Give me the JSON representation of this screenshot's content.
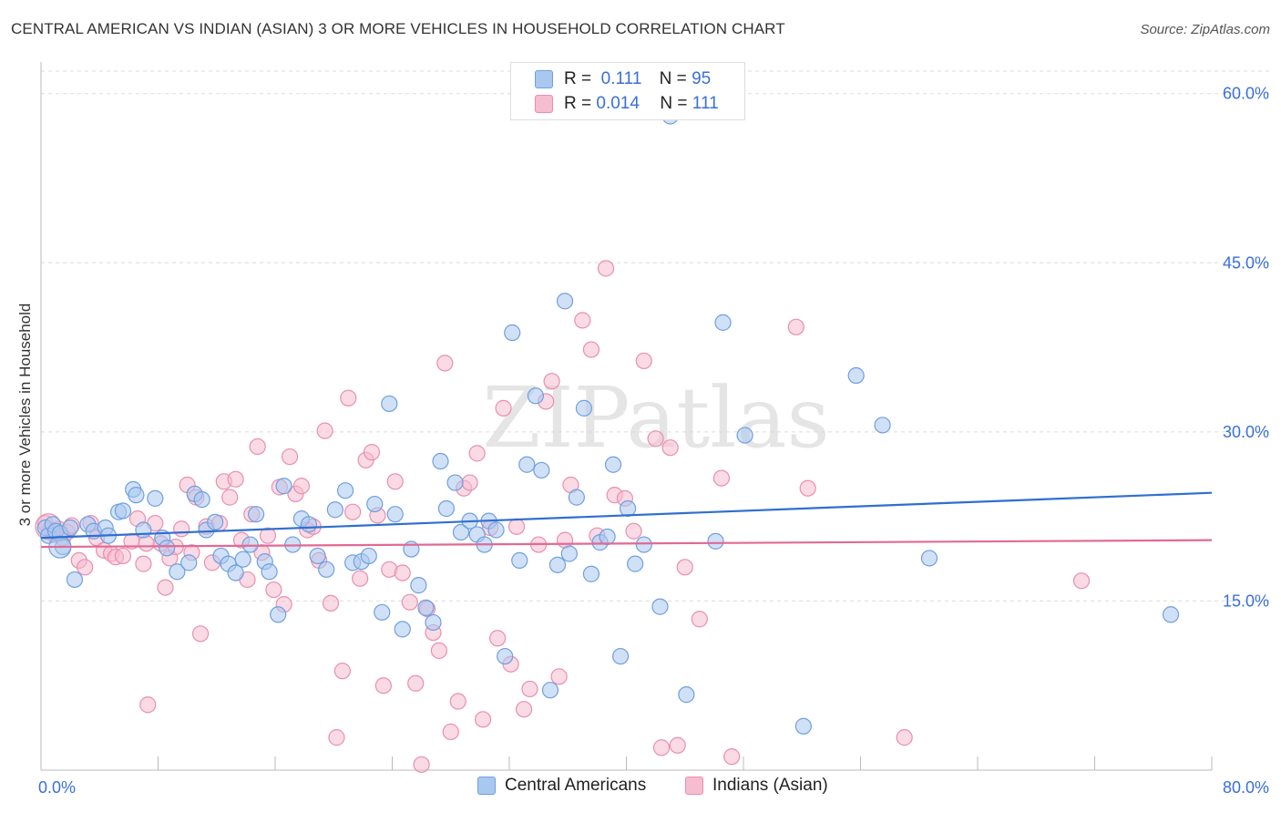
{
  "title": "CENTRAL AMERICAN VS INDIAN (ASIAN) 3 OR MORE VEHICLES IN HOUSEHOLD CORRELATION CHART",
  "source": "Source: ZipAtlas.com",
  "watermark": "ZIPatlas",
  "legend_top": {
    "r_label": "R =",
    "n_label": "N =",
    "rows": [
      {
        "r": "0.111",
        "n": "95"
      },
      {
        "r": "0.014",
        "n": "111"
      }
    ]
  },
  "colors": {
    "blue_fill": "#a9c8f0",
    "blue_stroke": "#6f9fe0",
    "blue_line": "#2f6fd0",
    "pink_fill": "#f6bccf",
    "pink_stroke": "#e98fae",
    "pink_line": "#e06a95",
    "axis_text": "#3a6fd8",
    "grid": "#dcdcdc"
  },
  "chart_data": {
    "type": "scatter",
    "title": "CENTRAL AMERICAN VS INDIAN (ASIAN) 3 OR MORE VEHICLES IN HOUSEHOLD CORRELATION CHART",
    "xlabel": "",
    "ylabel": "3 or more Vehicles in Household",
    "xlim": [
      0,
      80
    ],
    "ylim": [
      0,
      62
    ],
    "x_tick_labels": [
      "0.0%",
      "80.0%"
    ],
    "y_tick_labels": [
      "15.0%",
      "30.0%",
      "45.0%",
      "60.0%"
    ],
    "y_ticks": [
      15,
      30,
      45,
      60
    ],
    "grid": true,
    "legend": "top-center and bottom",
    "series": [
      {
        "name": "Central Americans",
        "color": "#a9c8f0",
        "r": "0.111",
        "n": "95",
        "trend": [
          [
            0,
            20.6
          ],
          [
            80,
            24.6
          ]
        ],
        "points": [
          [
            0.3,
            21.5
          ],
          [
            0.5,
            20.8
          ],
          [
            0.8,
            21.8
          ],
          [
            1.0,
            21.2
          ],
          [
            1.3,
            21.0
          ],
          [
            1.5,
            19.8
          ],
          [
            2.0,
            21.5
          ],
          [
            2.3,
            16.9
          ],
          [
            3.2,
            21.8
          ],
          [
            3.6,
            21.2
          ],
          [
            4.4,
            21.5
          ],
          [
            4.6,
            20.8
          ],
          [
            5.3,
            22.9
          ],
          [
            5.6,
            23.0
          ],
          [
            6.3,
            24.9
          ],
          [
            6.5,
            24.4
          ],
          [
            7.0,
            21.3
          ],
          [
            7.8,
            24.1
          ],
          [
            8.3,
            20.6
          ],
          [
            8.6,
            19.7
          ],
          [
            9.3,
            17.6
          ],
          [
            10.1,
            18.4
          ],
          [
            10.5,
            24.5
          ],
          [
            11.0,
            24.0
          ],
          [
            11.3,
            21.3
          ],
          [
            11.9,
            22.0
          ],
          [
            12.3,
            19.0
          ],
          [
            12.8,
            18.3
          ],
          [
            13.3,
            17.5
          ],
          [
            13.8,
            18.7
          ],
          [
            14.3,
            20.0
          ],
          [
            14.7,
            22.7
          ],
          [
            15.3,
            18.5
          ],
          [
            15.6,
            17.6
          ],
          [
            16.2,
            13.8
          ],
          [
            16.6,
            25.2
          ],
          [
            17.2,
            20.0
          ],
          [
            17.8,
            22.3
          ],
          [
            18.3,
            21.8
          ],
          [
            18.9,
            19.0
          ],
          [
            19.5,
            17.8
          ],
          [
            20.1,
            23.1
          ],
          [
            20.8,
            24.8
          ],
          [
            21.3,
            18.4
          ],
          [
            21.9,
            18.5
          ],
          [
            22.4,
            19.0
          ],
          [
            22.8,
            23.6
          ],
          [
            23.3,
            14.0
          ],
          [
            23.8,
            32.5
          ],
          [
            24.2,
            22.7
          ],
          [
            24.7,
            12.5
          ],
          [
            25.3,
            19.6
          ],
          [
            25.8,
            16.4
          ],
          [
            26.3,
            14.4
          ],
          [
            26.8,
            13.1
          ],
          [
            27.3,
            27.4
          ],
          [
            27.7,
            23.2
          ],
          [
            28.3,
            25.5
          ],
          [
            28.7,
            21.1
          ],
          [
            29.3,
            22.1
          ],
          [
            29.8,
            20.9
          ],
          [
            30.3,
            20.0
          ],
          [
            30.6,
            22.1
          ],
          [
            31.1,
            21.3
          ],
          [
            31.7,
            10.1
          ],
          [
            32.2,
            38.8
          ],
          [
            32.7,
            18.6
          ],
          [
            33.2,
            27.1
          ],
          [
            33.8,
            33.2
          ],
          [
            34.2,
            26.6
          ],
          [
            34.8,
            7.1
          ],
          [
            35.3,
            18.2
          ],
          [
            35.8,
            41.6
          ],
          [
            36.1,
            19.2
          ],
          [
            36.6,
            24.2
          ],
          [
            37.1,
            32.1
          ],
          [
            37.6,
            17.4
          ],
          [
            38.2,
            20.2
          ],
          [
            38.7,
            20.7
          ],
          [
            39.1,
            27.1
          ],
          [
            39.6,
            10.1
          ],
          [
            40.1,
            23.2
          ],
          [
            40.6,
            18.3
          ],
          [
            41.2,
            20.0
          ],
          [
            42.3,
            14.5
          ],
          [
            43.0,
            58.0
          ],
          [
            44.1,
            6.7
          ],
          [
            46.1,
            20.3
          ],
          [
            46.6,
            39.7
          ],
          [
            48.1,
            29.7
          ],
          [
            52.1,
            3.9
          ],
          [
            55.7,
            35.0
          ],
          [
            57.5,
            30.6
          ],
          [
            60.7,
            18.8
          ],
          [
            77.2,
            13.8
          ]
        ]
      },
      {
        "name": "Indians (Asian)",
        "color": "#f6bccf",
        "r": "0.014",
        "n": "111",
        "trend": [
          [
            0,
            19.8
          ],
          [
            80,
            20.4
          ]
        ],
        "points": [
          [
            0.3,
            21.9
          ],
          [
            0.6,
            21.3
          ],
          [
            0.9,
            20.9
          ],
          [
            1.2,
            21.4
          ],
          [
            1.5,
            20.6
          ],
          [
            1.8,
            21.1
          ],
          [
            2.1,
            21.7
          ],
          [
            2.6,
            18.6
          ],
          [
            3.0,
            18.0
          ],
          [
            3.4,
            21.9
          ],
          [
            3.8,
            20.6
          ],
          [
            4.3,
            19.5
          ],
          [
            4.8,
            19.2
          ],
          [
            5.1,
            18.9
          ],
          [
            5.6,
            19.0
          ],
          [
            6.2,
            20.3
          ],
          [
            6.6,
            22.3
          ],
          [
            7.0,
            18.3
          ],
          [
            7.3,
            5.8
          ],
          [
            7.8,
            21.9
          ],
          [
            8.2,
            20.1
          ],
          [
            8.5,
            16.2
          ],
          [
            8.8,
            18.8
          ],
          [
            9.2,
            19.8
          ],
          [
            9.6,
            21.4
          ],
          [
            10.0,
            25.3
          ],
          [
            10.3,
            19.3
          ],
          [
            10.6,
            24.2
          ],
          [
            10.9,
            12.1
          ],
          [
            11.3,
            21.6
          ],
          [
            11.7,
            18.4
          ],
          [
            12.2,
            21.9
          ],
          [
            12.5,
            25.6
          ],
          [
            12.9,
            24.2
          ],
          [
            13.3,
            25.8
          ],
          [
            13.7,
            20.4
          ],
          [
            14.1,
            16.9
          ],
          [
            14.4,
            22.7
          ],
          [
            14.8,
            28.7
          ],
          [
            15.1,
            19.3
          ],
          [
            15.5,
            20.8
          ],
          [
            15.9,
            16.0
          ],
          [
            16.3,
            25.1
          ],
          [
            16.6,
            14.7
          ],
          [
            17.0,
            27.8
          ],
          [
            17.4,
            24.5
          ],
          [
            17.8,
            25.2
          ],
          [
            18.2,
            21.3
          ],
          [
            18.6,
            21.6
          ],
          [
            19.0,
            18.6
          ],
          [
            19.4,
            30.1
          ],
          [
            19.8,
            14.8
          ],
          [
            20.2,
            2.9
          ],
          [
            20.6,
            8.8
          ],
          [
            21.0,
            33.0
          ],
          [
            21.3,
            22.9
          ],
          [
            21.8,
            17.0
          ],
          [
            22.2,
            27.5
          ],
          [
            22.6,
            28.2
          ],
          [
            23.0,
            22.6
          ],
          [
            23.4,
            7.5
          ],
          [
            23.8,
            17.8
          ],
          [
            24.2,
            25.6
          ],
          [
            24.7,
            17.5
          ],
          [
            25.2,
            14.9
          ],
          [
            25.6,
            7.7
          ],
          [
            26.0,
            0.5
          ],
          [
            26.4,
            14.3
          ],
          [
            26.8,
            12.2
          ],
          [
            27.2,
            10.6
          ],
          [
            27.6,
            36.1
          ],
          [
            28.0,
            3.4
          ],
          [
            28.5,
            6.1
          ],
          [
            28.9,
            25.0
          ],
          [
            29.3,
            25.5
          ],
          [
            29.8,
            28.1
          ],
          [
            30.2,
            4.5
          ],
          [
            30.7,
            21.5
          ],
          [
            31.2,
            11.7
          ],
          [
            31.6,
            32.1
          ],
          [
            32.1,
            9.4
          ],
          [
            32.5,
            21.6
          ],
          [
            33.0,
            5.4
          ],
          [
            33.4,
            7.2
          ],
          [
            34.0,
            20.0
          ],
          [
            34.5,
            32.7
          ],
          [
            34.9,
            34.5
          ],
          [
            35.4,
            8.3
          ],
          [
            35.8,
            20.4
          ],
          [
            36.2,
            25.3
          ],
          [
            37.0,
            39.9
          ],
          [
            37.6,
            37.3
          ],
          [
            38.0,
            20.8
          ],
          [
            38.6,
            44.5
          ],
          [
            39.2,
            24.4
          ],
          [
            39.9,
            24.1
          ],
          [
            40.5,
            21.2
          ],
          [
            41.2,
            36.3
          ],
          [
            42.0,
            29.4
          ],
          [
            42.4,
            2.0
          ],
          [
            43.0,
            28.6
          ],
          [
            43.5,
            2.2
          ],
          [
            44.0,
            18.0
          ],
          [
            45.0,
            13.4
          ],
          [
            46.5,
            25.9
          ],
          [
            47.2,
            1.2
          ],
          [
            51.6,
            39.3
          ],
          [
            52.4,
            25.0
          ],
          [
            59.0,
            2.9
          ],
          [
            71.1,
            16.8
          ],
          [
            7.2,
            20.1
          ]
        ]
      }
    ]
  },
  "bottom_legend": [
    {
      "label": "Central Americans"
    },
    {
      "label": "Indians (Asian)"
    }
  ]
}
